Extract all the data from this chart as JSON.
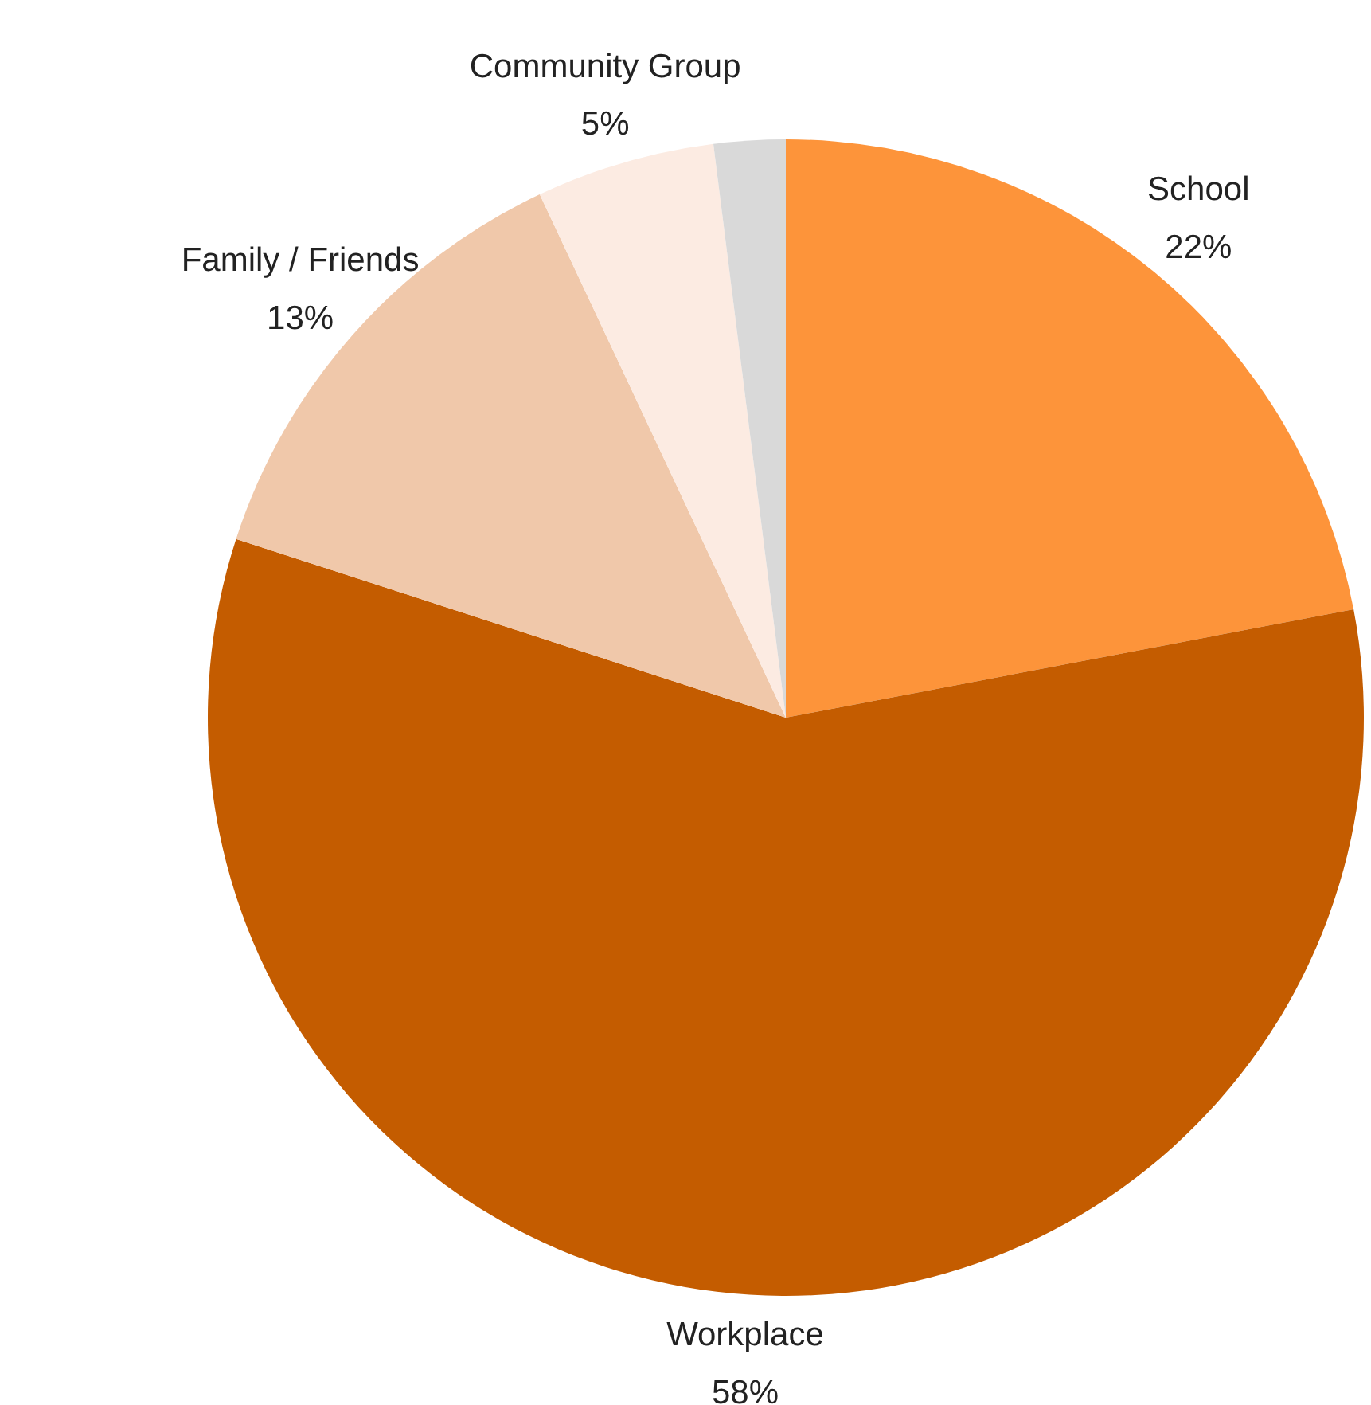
{
  "chart_data": {
    "type": "pie",
    "categories": [
      "School",
      "Workplace",
      "Family / Friends",
      "Community Group",
      null
    ],
    "values": [
      22,
      58,
      13,
      5,
      2
    ],
    "value_labels": [
      "22%",
      "58%",
      "13%",
      "5%",
      null
    ],
    "colors": [
      "#fd943a",
      "#c45c00",
      "#f0c8aa",
      "#fcebe2",
      "#d9d9d9"
    ]
  }
}
